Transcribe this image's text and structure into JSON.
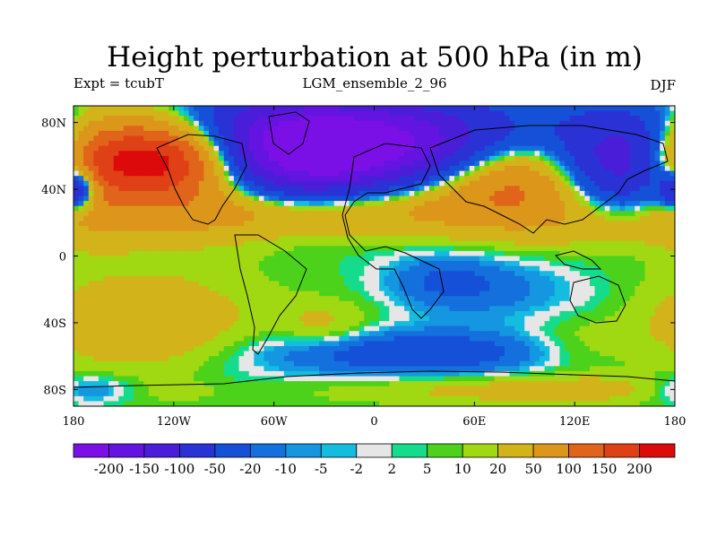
{
  "title": "Height perturbation at 500 hPa (in m)",
  "left_label": "Expt = tcubT",
  "center_label": "LGM_ensemble_2_96",
  "right_label": "DJF",
  "chart_data": {
    "type": "heatmap",
    "title": "Height perturbation at 500 hPa (in m)",
    "xlabel": "",
    "ylabel": "",
    "xlim": [
      -180,
      180
    ],
    "ylim": [
      -90,
      90
    ],
    "x_ticks": [
      {
        "value": -180,
        "label": "180"
      },
      {
        "value": -120,
        "label": "120W"
      },
      {
        "value": -60,
        "label": "60W"
      },
      {
        "value": 0,
        "label": "0"
      },
      {
        "value": 60,
        "label": "60E"
      },
      {
        "value": 120,
        "label": "120E"
      },
      {
        "value": 180,
        "label": "180"
      }
    ],
    "y_ticks": [
      {
        "value": 80,
        "label": "80N"
      },
      {
        "value": 40,
        "label": "40N"
      },
      {
        "value": 0,
        "label": "0"
      },
      {
        "value": -40,
        "label": "40S"
      },
      {
        "value": -80,
        "label": "80S"
      }
    ],
    "colorbar": {
      "colors": [
        "#7a10e6",
        "#6414e0",
        "#4a1ed8",
        "#2a32d6",
        "#1450d8",
        "#1470dc",
        "#1496e0",
        "#14bce0",
        "#e6e6e6",
        "#14dc8c",
        "#4cd21a",
        "#a0d812",
        "#d2b41a",
        "#dc961a",
        "#e0641a",
        "#e04016",
        "#dc0a0a"
      ],
      "labels": [
        "-200",
        "-150",
        "-100",
        "-50",
        "-20",
        "-10",
        "-5",
        "-2",
        "2",
        "5",
        "10",
        "20",
        "50",
        "100",
        "150",
        "200"
      ]
    },
    "field_blobs": [
      {
        "lon": -130,
        "lat": 58,
        "rlon": 38,
        "rlat": 16,
        "value": 230
      },
      {
        "lon": -105,
        "lat": 45,
        "rlon": 45,
        "rlat": 22,
        "value": 60
      },
      {
        "lon": -172,
        "lat": 52,
        "rlon": 18,
        "rlat": 22,
        "value": 60
      },
      {
        "lon": -60,
        "lat": 26,
        "rlon": 60,
        "rlat": 10,
        "value": 50
      },
      {
        "lon": 20,
        "lat": 30,
        "rlon": 55,
        "rlat": 11,
        "value": 40
      },
      {
        "lon": 85,
        "lat": 48,
        "rlon": 35,
        "rlat": 18,
        "value": 130
      },
      {
        "lon": 150,
        "lat": 22,
        "rlon": 40,
        "rlat": 12,
        "value": 45
      },
      {
        "lon": -55,
        "lat": 62,
        "rlon": 45,
        "rlat": 22,
        "value": -220
      },
      {
        "lon": 15,
        "lat": 68,
        "rlon": 60,
        "rlat": 18,
        "value": -180
      },
      {
        "lon": 150,
        "lat": 55,
        "rlon": 30,
        "rlat": 22,
        "value": -160
      },
      {
        "lon": -178,
        "lat": 40,
        "rlon": 8,
        "rlat": 8,
        "value": -150
      },
      {
        "lon": -10,
        "lat": 0,
        "rlon": 25,
        "rlat": 18,
        "value": 0
      },
      {
        "lon": 40,
        "lat": -15,
        "rlon": 25,
        "rlat": 12,
        "value": -25
      },
      {
        "lon": 80,
        "lat": -20,
        "rlon": 30,
        "rlat": 14,
        "value": -15
      },
      {
        "lon": 25,
        "lat": -58,
        "rlon": 70,
        "rlat": 10,
        "value": -40
      },
      {
        "lon": -140,
        "lat": -40,
        "rlon": 45,
        "rlat": 20,
        "value": 35
      },
      {
        "lon": -30,
        "lat": -42,
        "rlon": 20,
        "rlat": 10,
        "value": 20
      },
      {
        "lon": 140,
        "lat": -30,
        "rlon": 30,
        "rlat": 12,
        "value": -5
      },
      {
        "lon": 120,
        "lat": -55,
        "rlon": 25,
        "rlat": 12,
        "value": 15
      },
      {
        "lon": -110,
        "lat": -72,
        "rlon": 45,
        "rlat": 6,
        "value": -3
      },
      {
        "lon": 100,
        "lat": -80,
        "rlon": 80,
        "rlat": 6,
        "value": 25
      },
      {
        "lon": -170,
        "lat": -80,
        "rlon": 20,
        "rlat": 6,
        "value": -30
      }
    ]
  }
}
